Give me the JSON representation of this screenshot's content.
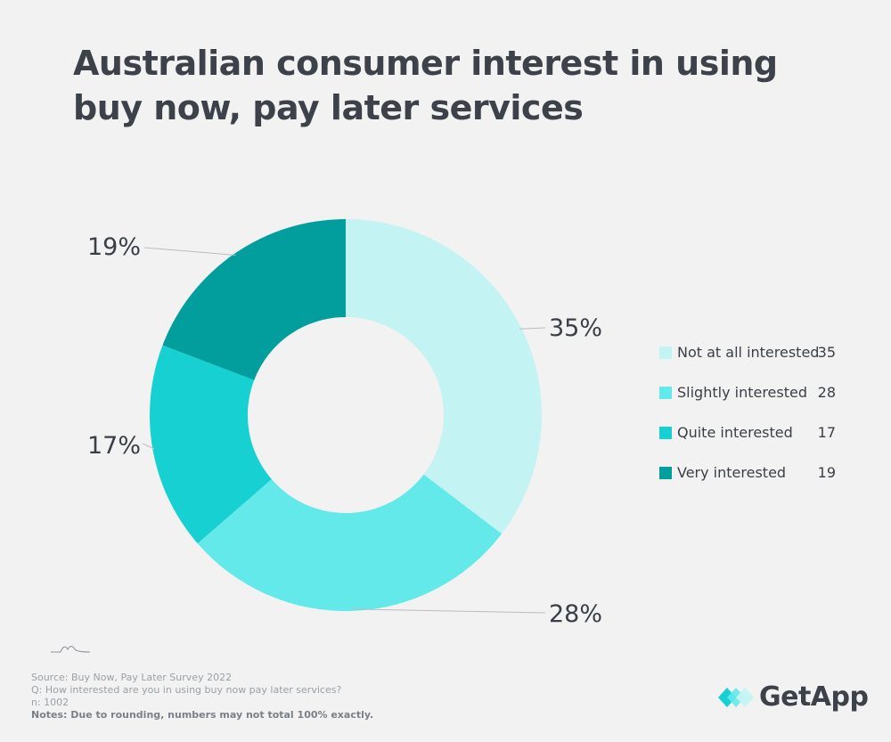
{
  "title": "Australian consumer interest in using buy now, pay later services",
  "chart_data": {
    "type": "pie",
    "categories": [
      "Not at all interested",
      "Slightly interested",
      "Quite interested",
      "Very interested"
    ],
    "values": [
      35,
      28,
      17,
      19
    ],
    "labels": [
      "35%",
      "28%",
      "17%",
      "19%"
    ],
    "colors": [
      "#c4f3f3",
      "#63e9ea",
      "#17d0d2",
      "#029e9e"
    ],
    "legend_position": "right",
    "donut": true
  },
  "footer": {
    "source": "Source: Buy Now, Pay Later Survey 2022",
    "question": "Q: How interested are you in using buy now pay later services?",
    "n": "n: 1002",
    "notes": "Notes: Due to rounding, numbers may not total 100% exactly."
  },
  "logo": {
    "text": "GetApp",
    "icon": "getapp-logo-icon"
  },
  "icons": {
    "decoration": "mountain-line-icon"
  }
}
